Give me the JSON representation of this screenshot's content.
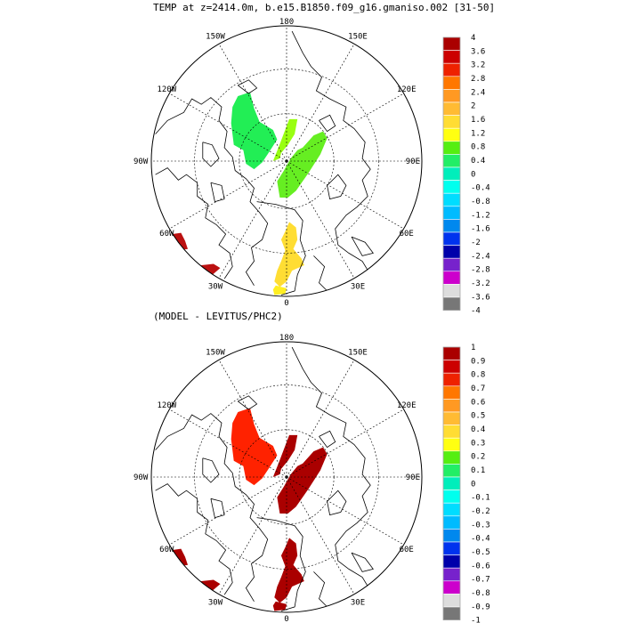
{
  "chart_data": [
    {
      "type": "heatmap",
      "projection": "north-polar-stereographic",
      "title": "TEMP at z=2414.0m, b.e15.B1850.f09_g16.gmaniso.002 [31-50]",
      "lon_labels": [
        "180",
        "150E",
        "120E",
        "90E",
        "60E",
        "30E",
        "0",
        "30W",
        "60W",
        "90W",
        "120W",
        "150W"
      ],
      "colorbar": {
        "ticks": [
          "4",
          "3.6",
          "3.2",
          "2.8",
          "2.4",
          "2",
          "1.6",
          "1.2",
          "0.8",
          "0.4",
          "0",
          "-0.4",
          "-0.8",
          "-1.2",
          "-1.6",
          "-2",
          "-2.4",
          "-2.8",
          "-3.2",
          "-3.6",
          "-4"
        ],
        "min": -4,
        "max": 4
      },
      "regions": [
        {
          "name": "beaufort-basin",
          "value": 0.6,
          "color": "#22ee55"
        },
        {
          "name": "lomonosov-strip",
          "value": 0.5,
          "color": "#99ff11"
        },
        {
          "name": "eurasian-basin",
          "value": 0.5,
          "color": "#66ee22"
        },
        {
          "name": "fram-strait",
          "value": 1.4,
          "color": "#ffdd33"
        },
        {
          "name": "nordic-seas-south",
          "value": 1.3,
          "color": "#ffee22"
        },
        {
          "name": "labrador-sea",
          "value": 4.0,
          "color": "#bb1111"
        },
        {
          "name": "north-atlantic",
          "value": 4.0,
          "color": "#bb1111"
        }
      ]
    },
    {
      "type": "heatmap",
      "projection": "north-polar-stereographic",
      "title": "(MODEL - LEVITUS/PHC2)",
      "lon_labels": [
        "180",
        "150E",
        "120E",
        "90E",
        "60E",
        "30E",
        "0",
        "30W",
        "60W",
        "90W",
        "120W",
        "150W"
      ],
      "colorbar": {
        "ticks": [
          "1",
          "0.9",
          "0.8",
          "0.7",
          "0.6",
          "0.5",
          "0.4",
          "0.3",
          "0.2",
          "0.1",
          "0",
          "-0.1",
          "-0.2",
          "-0.3",
          "-0.4",
          "-0.5",
          "-0.6",
          "-0.7",
          "-0.8",
          "-0.9",
          "-1"
        ],
        "min": -1,
        "max": 1
      },
      "regions": [
        {
          "name": "beaufort-basin",
          "value": 0.85,
          "color": "#ff2200"
        },
        {
          "name": "lomonosov-strip",
          "value": 1.0,
          "color": "#aa0000"
        },
        {
          "name": "eurasian-basin",
          "value": 1.0,
          "color": "#aa0000"
        },
        {
          "name": "fram-strait",
          "value": 1.0,
          "color": "#aa0000"
        },
        {
          "name": "nordic-seas-south",
          "value": 1.0,
          "color": "#aa0000"
        },
        {
          "name": "labrador-sea",
          "value": 1.0,
          "color": "#aa0000"
        },
        {
          "name": "north-atlantic",
          "value": 1.0,
          "color": "#aa0000"
        }
      ]
    }
  ],
  "palette": [
    "#aa0000",
    "#cc0000",
    "#ee2200",
    "#ff7700",
    "#ff9922",
    "#ffbb33",
    "#ffdd33",
    "#ffff11",
    "#55ee11",
    "#22ee66",
    "#00eebb",
    "#00ffee",
    "#00ddff",
    "#00bbff",
    "#0088ee",
    "#0033ee",
    "#0000aa",
    "#7722cc",
    "#cc00cc",
    "#dddddd",
    "#777777"
  ]
}
